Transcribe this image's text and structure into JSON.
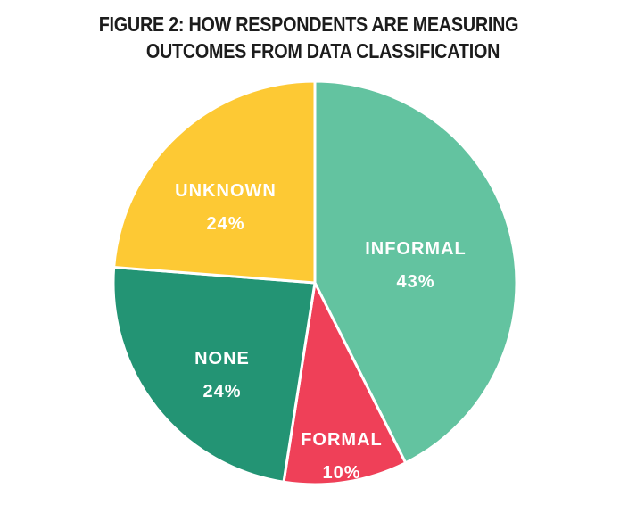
{
  "header": {
    "title_line_1": "FIGURE 2: HOW RESPONDENTS ARE MEASURING",
    "title_line_2": "OUTCOMES FROM DATA CLASSIFICATION"
  },
  "chart_data": {
    "type": "pie",
    "title": "FIGURE 2: HOW RESPONDENTS ARE MEASURING OUTCOMES FROM DATA CLASSIFICATION",
    "legend": "none",
    "slices": [
      {
        "label": "INFORMAL",
        "value": 43,
        "value_label": "43%",
        "color": "#63C3A0"
      },
      {
        "label": "FORMAL",
        "value": 10,
        "value_label": "10%",
        "color": "#EF4058"
      },
      {
        "label": "NONE",
        "value": 24,
        "value_label": "24%",
        "color": "#239474"
      },
      {
        "label": "UNKNOWN",
        "value": 24,
        "value_label": "24%",
        "color": "#FDC934"
      }
    ]
  }
}
